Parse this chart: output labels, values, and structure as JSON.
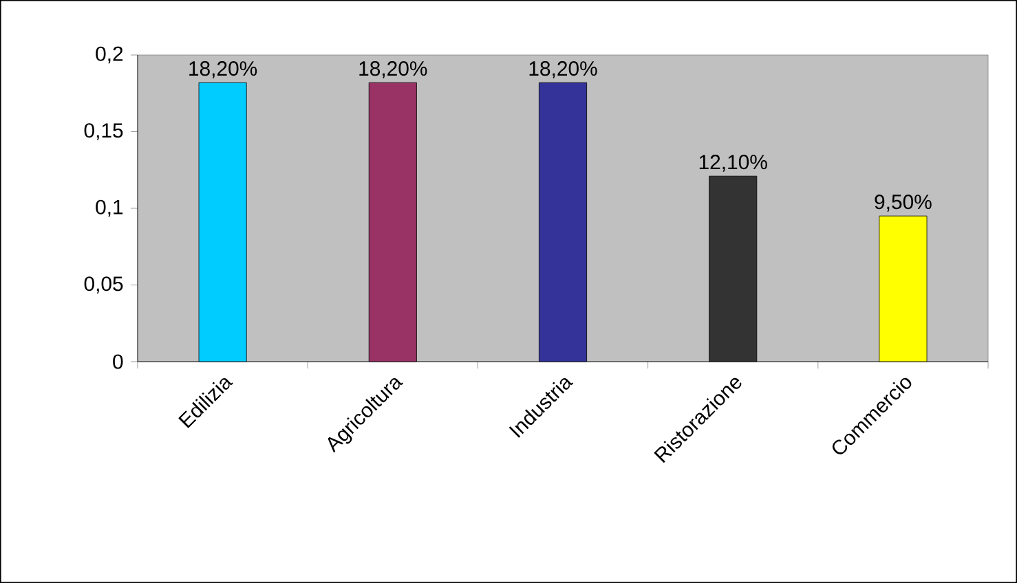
{
  "chart_data": {
    "type": "bar",
    "categories": [
      "Edilizia",
      "Agricoltura",
      "Industria",
      "Ristorazione",
      "Commercio"
    ],
    "values": [
      0.182,
      0.182,
      0.182,
      0.121,
      0.095
    ],
    "value_labels": [
      "18,20%",
      "18,20%",
      "18,20%",
      "12,10%",
      "9,50%"
    ],
    "colors": [
      "#00ccff",
      "#993366",
      "#333399",
      "#333333",
      "#ffff00"
    ],
    "ylim": [
      0,
      0.2
    ],
    "yticks": [
      {
        "value": 0,
        "label": "0"
      },
      {
        "value": 0.05,
        "label": "0,05"
      },
      {
        "value": 0.1,
        "label": "0,1"
      },
      {
        "value": 0.15,
        "label": "0,15"
      },
      {
        "value": 0.2,
        "label": "0,2"
      }
    ],
    "grid": false
  }
}
